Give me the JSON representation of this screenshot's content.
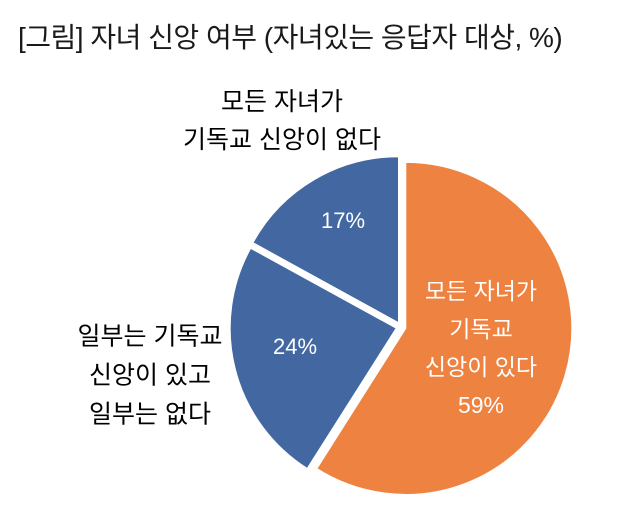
{
  "figure": {
    "title": "[그림] 자녀 신앙 여부 (자녀있는 응답자 대상, %)"
  },
  "chart_data": {
    "type": "pie",
    "unit": "%",
    "title": "[그림] 자녀 신앙 여부 (자녀있는 응답자 대상, %)",
    "start_angle_deg": 0,
    "direction": "clockwise",
    "exploded": true,
    "background_color": "#ffffff",
    "inside_label_color": "#ffffff",
    "outside_label_color": "#000000",
    "slices": [
      {
        "label": "모든 자녀가 기독교 신앙이 있다",
        "value": 59,
        "color": "#EE8240",
        "label_placement": "inside",
        "label_lines": [
          "모든 자녀가",
          "기독교",
          "신앙이 있다",
          "59%"
        ]
      },
      {
        "label": "일부는 기독교 신앙이 있고 일부는 없다",
        "value": 24,
        "color": "#4368A1",
        "label_placement": "outside",
        "pct_label": "24%",
        "callout_lines": [
          "일부는 기독교",
          "신앙이 있고",
          "일부는 없다"
        ]
      },
      {
        "label": "모든 자녀가 기독교 신앙이 없다",
        "value": 17,
        "color": "#4368A1",
        "label_placement": "outside",
        "pct_label": "17%",
        "callout_lines": [
          "모든 자녀가",
          "기독교 신앙이 없다"
        ]
      }
    ]
  }
}
